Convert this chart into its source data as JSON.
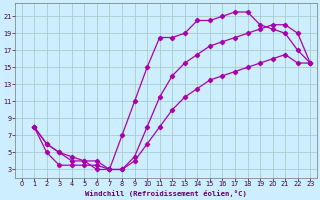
{
  "background_color": "#cceeff",
  "grid_color": "#aacccc",
  "line_color": "#aa00aa",
  "marker_color": "#aa00aa",
  "xlabel": "Windchill (Refroidissement éolien,°C)",
  "xlabel_color": "#660066",
  "tick_color": "#440044",
  "xlim": [
    -0.5,
    23.5
  ],
  "ylim": [
    2,
    22.5
  ],
  "xticks": [
    0,
    1,
    2,
    3,
    4,
    5,
    6,
    7,
    8,
    9,
    10,
    11,
    12,
    13,
    14,
    15,
    16,
    17,
    18,
    19,
    20,
    21,
    22,
    23
  ],
  "yticks": [
    3,
    5,
    7,
    9,
    11,
    13,
    15,
    17,
    19,
    21
  ],
  "curve1_x": [
    1,
    2,
    3,
    4,
    5,
    6,
    7,
    8,
    9,
    10,
    11,
    12,
    13,
    14,
    15,
    16,
    17,
    18,
    19,
    20,
    21,
    22,
    23
  ],
  "curve1_y": [
    8,
    6,
    5,
    4,
    4,
    3,
    3,
    7,
    11,
    15,
    18.5,
    18.5,
    19,
    20.5,
    20.5,
    21,
    21.5,
    21.5,
    20,
    19.5,
    19,
    17,
    15.5
  ],
  "curve2_x": [
    1,
    2,
    3,
    4,
    5,
    6,
    7,
    8,
    9,
    10,
    11,
    12,
    13,
    14,
    15,
    16,
    17,
    18,
    19,
    20,
    21,
    22,
    23
  ],
  "curve2_y": [
    8,
    5,
    3.5,
    3.5,
    3.5,
    3.5,
    3,
    3,
    4,
    6,
    8,
    10,
    11.5,
    12.5,
    13.5,
    14,
    14.5,
    15,
    15.5,
    16,
    16.5,
    15.5,
    15.5
  ],
  "curve3_x": [
    1,
    2,
    3,
    4,
    5,
    6,
    7,
    8,
    9,
    10,
    11,
    12,
    13,
    14,
    15,
    16,
    17,
    18,
    19,
    20,
    21,
    22,
    23
  ],
  "curve3_y": [
    8,
    6,
    5,
    4.5,
    4,
    4,
    3,
    3,
    4.5,
    8,
    11.5,
    14,
    15.5,
    16.5,
    17.5,
    18,
    18.5,
    19,
    19.5,
    20,
    20,
    19,
    15.5
  ]
}
